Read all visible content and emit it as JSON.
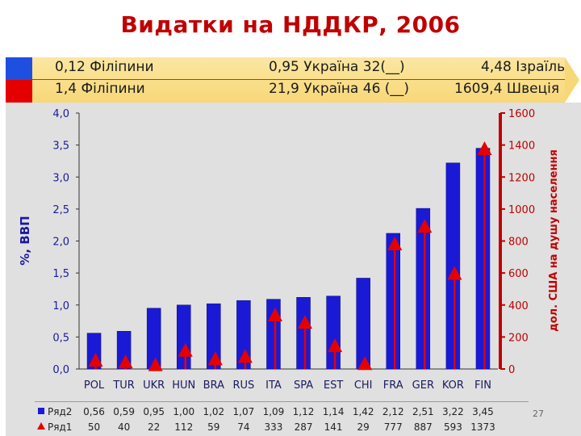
{
  "title": "Видатки на НДДКР, 2006",
  "header": {
    "row1": [
      "0,12 Філіпини",
      "0,95 Україна 32(__)",
      "4,48 Ізраїль"
    ],
    "row2": [
      "1,4 Філіпини",
      "21,9 Україна 46 (__)",
      "1609,4 Швеція"
    ]
  },
  "slide_number": "27",
  "colors": {
    "bar": "#1a1ad6",
    "marker": "#e50000",
    "left_axis": "#1a1aa0",
    "right_axis": "#c00000"
  },
  "chart_data": {
    "type": "bar",
    "categories": [
      "POL",
      "TUR",
      "UKR",
      "HUN",
      "BRA",
      "RUS",
      "ITA",
      "SPA",
      "EST",
      "CHI",
      "FRA",
      "GER",
      "KOR",
      "FIN"
    ],
    "series": [
      {
        "name": "Ряд2",
        "axis": "left",
        "type": "bar",
        "values": [
          0.56,
          0.59,
          0.95,
          1.0,
          1.02,
          1.07,
          1.09,
          1.12,
          1.14,
          1.42,
          2.12,
          2.51,
          3.22,
          3.45
        ],
        "labels": [
          "0,56",
          "0,59",
          "0,95",
          "1,00",
          "1,02",
          "1,07",
          "1,09",
          "1,12",
          "1,14",
          "1,42",
          "2,12",
          "2,51",
          "3,22",
          "3,45"
        ]
      },
      {
        "name": "Ряд1",
        "axis": "right",
        "type": "stem-triangle",
        "values": [
          50,
          40,
          22,
          112,
          59,
          74,
          333,
          287,
          141,
          29,
          777,
          887,
          593,
          1373
        ],
        "labels": [
          "50",
          "40",
          "22",
          "112",
          "59",
          "74",
          "333",
          "287",
          "141",
          "29",
          "777",
          "887",
          "593",
          "1373"
        ]
      }
    ],
    "ylabel": "%, ВВП",
    "ylabel_right": "дол. США на душу населення",
    "ylim": [
      0,
      4
    ],
    "ylim_right": [
      0,
      1600
    ],
    "yticks": [
      "0,0",
      "0,5",
      "1,0",
      "1,5",
      "2,0",
      "2,5",
      "3,0",
      "3,5",
      "4,0"
    ],
    "yticks_right": [
      "0",
      "200",
      "400",
      "600",
      "800",
      "1000",
      "1200",
      "1400",
      "1600"
    ],
    "grid": false,
    "legend": "data-table below chart"
  }
}
